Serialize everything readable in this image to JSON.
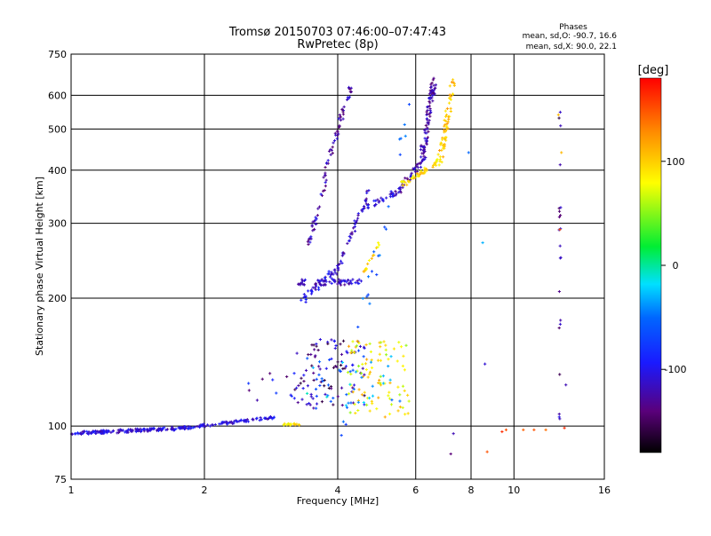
{
  "chart_data": {
    "type": "scatter",
    "title": "Tromsø 20150703 07:46:00–07:47:43",
    "subtitle": "RwPretec (8p)",
    "xlabel": "Frequency [MHz]",
    "ylabel": "Stationary phase Virtual Height [km]",
    "x_scale": "log",
    "y_scale": "log",
    "xlim": [
      1,
      16
    ],
    "ylim": [
      75,
      750
    ],
    "x_ticks": [
      1,
      2,
      4,
      6,
      8,
      10,
      16
    ],
    "y_ticks": [
      75,
      100,
      200,
      300,
      400,
      500,
      600,
      750
    ],
    "x_tick_labels": [
      "1",
      "2",
      "4",
      "6",
      "8",
      "10",
      "16"
    ],
    "y_tick_labels": [
      "75",
      "100",
      "200",
      "300",
      "400",
      "500",
      "600",
      "750"
    ],
    "grid": true,
    "phase_info": {
      "heading": "Phases",
      "line1": "mean, sd,O: -90.7, 16.6",
      "line2": "mean, sd,X:  90.0, 22.1"
    },
    "colorbar": {
      "label": "[deg]",
      "range": [
        -180,
        180
      ],
      "ticks": [
        100,
        0,
        -100
      ],
      "tick_labels": [
        "100",
        "0",
        "-100"
      ]
    },
    "traces": [
      {
        "x0": 1.0,
        "x1": 1.8,
        "y0": 96,
        "y1": 99,
        "phase": -110,
        "n": 160,
        "spread": 0.012
      },
      {
        "x0": 1.8,
        "x1": 2.9,
        "y0": 99,
        "y1": 105,
        "phase": -105,
        "n": 90,
        "spread": 0.01
      },
      {
        "x0": 3.0,
        "x1": 3.3,
        "y0": 101,
        "y1": 101,
        "phase": 90,
        "n": 18,
        "spread": 0.006
      },
      {
        "x0": 3.3,
        "x1": 3.9,
        "y0": 196,
        "y1": 230,
        "phase": -105,
        "n": 40,
        "spread": 0.03
      },
      {
        "x0": 3.2,
        "x1": 4.5,
        "y0": 218,
        "y1": 218,
        "phase": -115,
        "n": 60,
        "spread": 0.02
      },
      {
        "x0": 3.4,
        "x1": 3.8,
        "y0": 260,
        "y1": 380,
        "phase": -120,
        "n": 30,
        "spread": 0.02
      },
      {
        "x0": 3.7,
        "x1": 4.3,
        "y0": 380,
        "y1": 640,
        "phase": -125,
        "n": 50,
        "spread": 0.02
      },
      {
        "x0": 3.9,
        "x1": 4.7,
        "y0": 220,
        "y1": 360,
        "phase": -118,
        "n": 45,
        "spread": 0.02
      },
      {
        "x0": 4.4,
        "x1": 5.6,
        "y0": 320,
        "y1": 360,
        "phase": -110,
        "n": 35,
        "spread": 0.02
      },
      {
        "x0": 4.6,
        "x1": 5.0,
        "y0": 230,
        "y1": 275,
        "phase": 95,
        "n": 15,
        "spread": 0.012
      },
      {
        "x0": 5.4,
        "x1": 6.3,
        "y0": 350,
        "y1": 430,
        "phase": -120,
        "n": 40,
        "spread": 0.02
      },
      {
        "x0": 6.2,
        "x1": 6.6,
        "y0": 430,
        "y1": 650,
        "phase": -125,
        "n": 90,
        "spread": 0.03
      },
      {
        "x0": 5.6,
        "x1": 6.8,
        "y0": 370,
        "y1": 420,
        "phase": 95,
        "n": 45,
        "spread": 0.02
      },
      {
        "x0": 6.8,
        "x1": 7.3,
        "y0": 420,
        "y1": 650,
        "phase": 105,
        "n": 60,
        "spread": 0.025
      },
      {
        "x0": 4.0,
        "x1": 5.9,
        "y0": 90,
        "y1": 650,
        "phase": -60,
        "n": 30,
        "spread": 0.05
      }
    ],
    "clusters": [
      {
        "x0": 3.2,
        "x1": 4.6,
        "y0": 110,
        "y1": 160,
        "phase": -130,
        "n": 90
      },
      {
        "x0": 4.2,
        "x1": 5.8,
        "y0": 105,
        "y1": 160,
        "phase": 85,
        "n": 90
      },
      {
        "x0": 3.4,
        "x1": 5.6,
        "y0": 110,
        "y1": 150,
        "phase": -40,
        "n": 40
      },
      {
        "x0": 2.5,
        "x1": 3.2,
        "y0": 112,
        "y1": 135,
        "phase": -110,
        "n": 12
      }
    ],
    "vertical_traces": [
      {
        "x": 12.7,
        "y0": 100,
        "y1": 600,
        "phase": -130,
        "n": 22
      }
    ],
    "isolated": [
      {
        "x": 9.4,
        "y": 97,
        "phase": 165
      },
      {
        "x": 9.6,
        "y": 98,
        "phase": 150
      },
      {
        "x": 10.5,
        "y": 98,
        "phase": 145
      },
      {
        "x": 11.1,
        "y": 98,
        "phase": 150
      },
      {
        "x": 11.8,
        "y": 98,
        "phase": 140
      },
      {
        "x": 13.0,
        "y": 99,
        "phase": 165
      },
      {
        "x": 8.7,
        "y": 87,
        "phase": 150
      },
      {
        "x": 7.2,
        "y": 86,
        "phase": -140
      },
      {
        "x": 7.3,
        "y": 96,
        "phase": -120
      },
      {
        "x": 8.5,
        "y": 270,
        "phase": -30
      },
      {
        "x": 8.6,
        "y": 140,
        "phase": -110
      },
      {
        "x": 7.9,
        "y": 440,
        "phase": -50
      },
      {
        "x": 12.6,
        "y": 540,
        "phase": 110
      },
      {
        "x": 12.8,
        "y": 440,
        "phase": 110
      },
      {
        "x": 12.7,
        "y": 290,
        "phase": 150
      },
      {
        "x": 13.1,
        "y": 125,
        "phase": -120
      }
    ]
  }
}
